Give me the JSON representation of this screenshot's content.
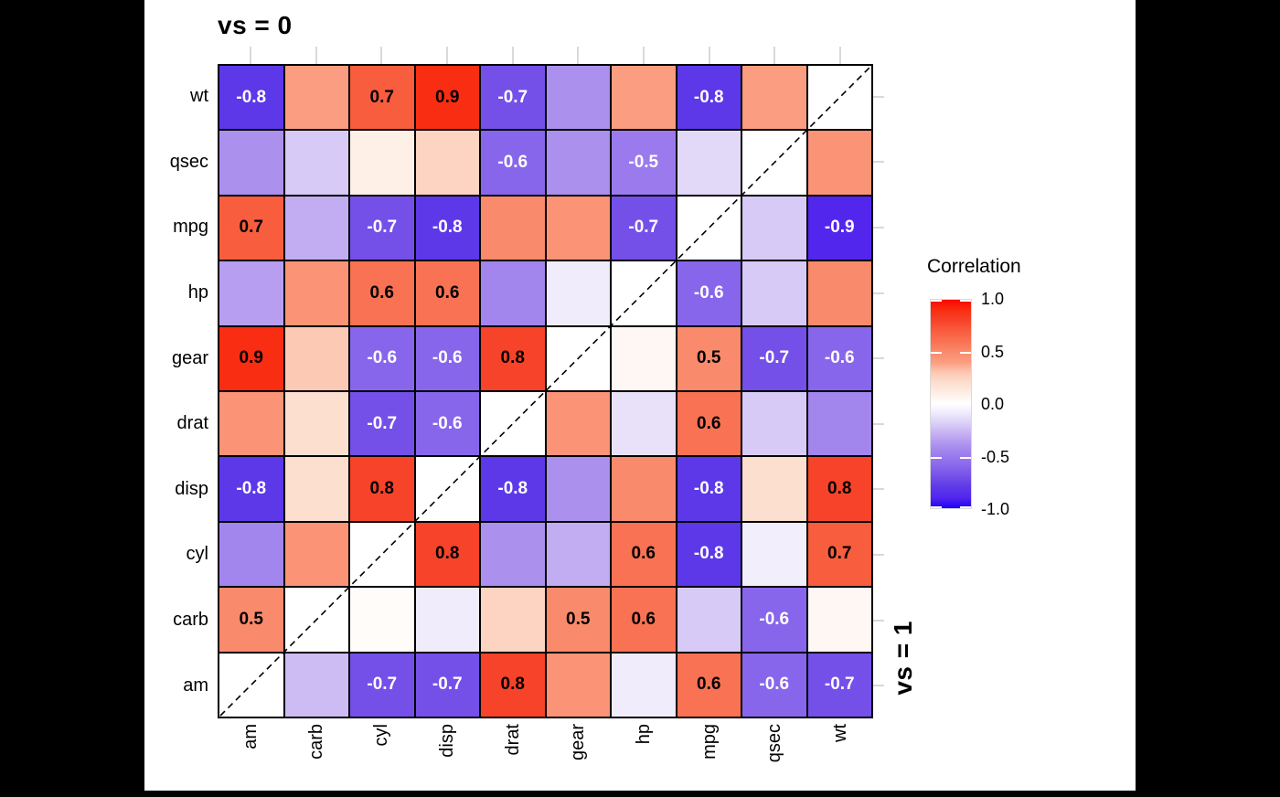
{
  "facets": {
    "top_label": "vs = 0",
    "right_label": "vs = 1"
  },
  "legend": {
    "title": "Correlation",
    "tick_labels": [
      "1.0",
      "0.5",
      "0.0",
      "-0.5",
      "-1.0"
    ],
    "tick_values": [
      1.0,
      0.5,
      0.0,
      -0.5,
      -1.0
    ],
    "bar_tick_values": [
      1.0,
      0.5,
      -0.5,
      -1.0
    ]
  },
  "palette": {
    "stops": [
      [
        -1.0,
        "#1C00FB"
      ],
      [
        -0.9,
        "#5326EE"
      ],
      [
        -0.8,
        "#5D38E8"
      ],
      [
        -0.7,
        "#7450E9"
      ],
      [
        -0.6,
        "#8766EB"
      ],
      [
        -0.5,
        "#9B7AED"
      ],
      [
        -0.4,
        "#AB90EE"
      ],
      [
        -0.3,
        "#C2ACF2"
      ],
      [
        -0.2,
        "#D7CAF6"
      ],
      [
        -0.1,
        "#EDE7FB"
      ],
      [
        0.0,
        "#FFFFFF"
      ],
      [
        0.1,
        "#FEEFE7"
      ],
      [
        0.2,
        "#FDDFD0"
      ],
      [
        0.3,
        "#FCC9B4"
      ],
      [
        0.4,
        "#FB9D80"
      ],
      [
        0.5,
        "#FA8A6C"
      ],
      [
        0.6,
        "#F97253"
      ],
      [
        0.7,
        "#F85D3E"
      ],
      [
        0.8,
        "#F7432A"
      ],
      [
        0.9,
        "#F92D12"
      ],
      [
        1.0,
        "#FB0800"
      ]
    ],
    "grid_line_color": "#000000",
    "axis_tick_color": "#D9D9D9",
    "diagonal_cell_color": "#FFFFFF",
    "positive_label_color": "#000000",
    "negative_label_color": "#FFFFFF",
    "letterbox_color": "#000000",
    "plot_background": "#FFFFFF"
  },
  "chart_data": {
    "type": "heatmap",
    "title": "",
    "facet_upper_left_triangle": "vs = 0",
    "facet_lower_right_triangle": "vs = 1",
    "x_categories": [
      "am",
      "carb",
      "cyl",
      "disp",
      "drat",
      "gear",
      "hp",
      "mpg",
      "qsec",
      "wt"
    ],
    "y_categories_top_to_bottom": [
      "wt",
      "qsec",
      "mpg",
      "hp",
      "gear",
      "drat",
      "disp",
      "cyl",
      "carb",
      "am"
    ],
    "colorbar": {
      "title": "Correlation",
      "range": [
        -1,
        1
      ],
      "ticks": [
        1.0,
        0.5,
        0.0,
        -0.5,
        -1.0
      ]
    },
    "diagonal": "white cells crossed by a dashed line from bottom-left to top-right",
    "rows": [
      {
        "row": "wt",
        "values": [
          -0.8,
          0.4,
          0.7,
          0.9,
          -0.7,
          -0.4,
          0.4,
          -0.8,
          0.4,
          null
        ],
        "labels": [
          "-0.8",
          null,
          "0.7",
          "0.9",
          "-0.7",
          null,
          null,
          "-0.8",
          null,
          null
        ]
      },
      {
        "row": "qsec",
        "values": [
          -0.4,
          -0.2,
          0.1,
          0.25,
          -0.6,
          -0.4,
          -0.5,
          -0.15,
          null,
          0.45
        ],
        "labels": [
          null,
          null,
          null,
          null,
          "-0.6",
          null,
          "-0.5",
          null,
          null,
          null
        ]
      },
      {
        "row": "mpg",
        "values": [
          0.7,
          -0.3,
          -0.7,
          -0.8,
          0.5,
          0.45,
          -0.7,
          null,
          -0.2,
          -0.9
        ],
        "labels": [
          "0.7",
          null,
          "-0.7",
          "-0.8",
          null,
          null,
          "-0.7",
          null,
          null,
          "-0.9"
        ]
      },
      {
        "row": "hp",
        "values": [
          -0.35,
          0.45,
          0.6,
          0.6,
          -0.45,
          -0.08,
          null,
          -0.6,
          -0.2,
          0.5
        ],
        "labels": [
          null,
          null,
          "0.6",
          "0.6",
          null,
          null,
          null,
          "-0.6",
          null,
          null
        ]
      },
      {
        "row": "gear",
        "values": [
          0.9,
          0.3,
          -0.6,
          -0.6,
          0.8,
          null,
          0.05,
          0.5,
          -0.7,
          -0.6
        ],
        "labels": [
          "0.9",
          null,
          "-0.6",
          "-0.6",
          "0.8",
          null,
          null,
          "0.5",
          "-0.7",
          "-0.6"
        ]
      },
      {
        "row": "drat",
        "values": [
          0.45,
          0.2,
          -0.7,
          -0.6,
          null,
          0.45,
          -0.12,
          0.6,
          -0.2,
          -0.45
        ],
        "labels": [
          null,
          null,
          "-0.7",
          "-0.6",
          null,
          null,
          null,
          "0.6",
          null,
          null
        ]
      },
      {
        "row": "disp",
        "values": [
          -0.8,
          0.2,
          0.8,
          null,
          -0.8,
          -0.4,
          0.5,
          -0.8,
          0.2,
          0.8
        ],
        "labels": [
          "-0.8",
          null,
          "0.8",
          null,
          "-0.8",
          null,
          null,
          "-0.8",
          null,
          "0.8"
        ]
      },
      {
        "row": "cyl",
        "values": [
          -0.45,
          0.45,
          null,
          0.8,
          -0.4,
          -0.3,
          0.6,
          -0.8,
          -0.07,
          0.7
        ],
        "labels": [
          null,
          null,
          null,
          "0.8",
          null,
          null,
          "0.6",
          "-0.8",
          null,
          "0.7"
        ]
      },
      {
        "row": "carb",
        "values": [
          0.5,
          null,
          0.02,
          -0.08,
          0.25,
          0.5,
          0.6,
          -0.2,
          -0.6,
          0.05
        ],
        "labels": [
          "0.5",
          null,
          null,
          null,
          null,
          "0.5",
          "0.6",
          null,
          "-0.6",
          null
        ]
      },
      {
        "row": "am",
        "values": [
          null,
          -0.25,
          -0.7,
          -0.7,
          0.8,
          0.45,
          -0.08,
          0.6,
          -0.6,
          -0.7
        ],
        "labels": [
          null,
          null,
          "-0.7",
          "-0.7",
          "0.8",
          null,
          null,
          "0.6",
          "-0.6",
          "-0.7"
        ]
      }
    ]
  }
}
